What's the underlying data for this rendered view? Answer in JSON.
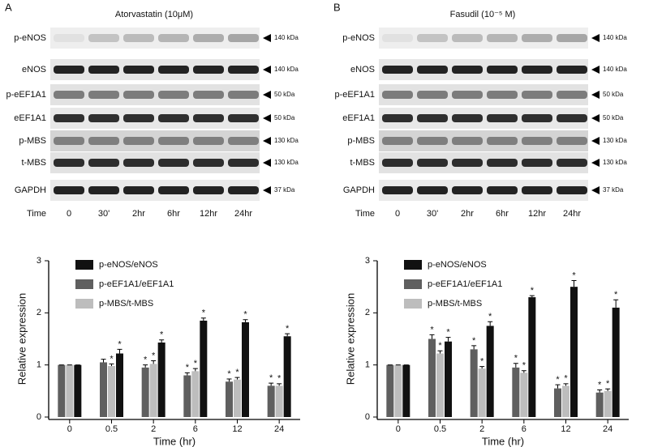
{
  "panels": [
    {
      "label": "A",
      "title": "Atorvastatin (10μM)",
      "rows": [
        {
          "name": "p-eNOS",
          "size": "140 kDa"
        },
        {
          "name": "eNOS",
          "size": "140 kDa"
        },
        {
          "name": "p-eEF1A1",
          "size": "50 kDa"
        },
        {
          "name": "eEF1A1",
          "size": "50 kDa"
        },
        {
          "name": "p-MBS",
          "size": "130 kDa"
        },
        {
          "name": "t-MBS",
          "size": "130 kDa"
        },
        {
          "name": "GAPDH",
          "size": "37 kDa"
        }
      ],
      "time_label": "Time",
      "lanes": [
        "0",
        "30'",
        "2hr",
        "6hr",
        "12hr",
        "24hr"
      ]
    },
    {
      "label": "B",
      "title": "Fasudil (10⁻⁵ M)",
      "rows": [
        {
          "name": "p-eNOS",
          "size": "140 kDa"
        },
        {
          "name": "eNOS",
          "size": "140 kDa"
        },
        {
          "name": "p-eEF1A1",
          "size": "50 kDa"
        },
        {
          "name": "eEF1A1",
          "size": "50 kDa"
        },
        {
          "name": "p-MBS",
          "size": "130 kDa"
        },
        {
          "name": "t-MBS",
          "size": "130 kDa"
        },
        {
          "name": "GAPDH",
          "size": "37 kDa"
        }
      ],
      "time_label": "Time",
      "lanes": [
        "0",
        "30'",
        "2hr",
        "6hr",
        "12hr",
        "24hr"
      ]
    }
  ],
  "chart_data": [
    {
      "type": "bar",
      "x_label": "Time (hr)",
      "y_label": "Relative expression",
      "categories": [
        "0",
        "0.5",
        "2",
        "6",
        "12",
        "24"
      ],
      "ylim": [
        0,
        3
      ],
      "yticks": [
        0,
        1,
        2,
        3
      ],
      "series": [
        {
          "name": "p-eNOS/eNOS",
          "color": "#111111",
          "values": [
            1,
            1.22,
            1.43,
            1.85,
            1.82,
            1.55
          ],
          "errors": [
            0,
            0.08,
            0.05,
            0.05,
            0.05,
            0.05
          ],
          "significance": [
            null,
            "*",
            "*",
            "*",
            "*",
            "*"
          ]
        },
        {
          "name": "p-eEF1A1/eEF1A1",
          "color": "#5f5f5f",
          "values": [
            1,
            1.05,
            0.95,
            0.8,
            0.68,
            0.6
          ],
          "errors": [
            0,
            0.06,
            0.05,
            0.05,
            0.05,
            0.05
          ],
          "significance": [
            null,
            null,
            "*",
            "*",
            "*",
            "*"
          ]
        },
        {
          "name": "p-MBS/t-MBS",
          "color": "#bdbdbd",
          "values": [
            1,
            0.98,
            1.02,
            0.88,
            0.72,
            0.6
          ],
          "errors": [
            0,
            0.04,
            0.06,
            0.05,
            0.04,
            0.04
          ],
          "significance": [
            null,
            "*",
            "*",
            "*",
            "*",
            "*"
          ]
        }
      ]
    },
    {
      "type": "bar",
      "x_label": "Time (hr)",
      "y_label": "Relative expression",
      "categories": [
        "0",
        "0.5",
        "2",
        "6",
        "12",
        "24"
      ],
      "ylim": [
        0,
        3
      ],
      "yticks": [
        0,
        1,
        2,
        3
      ],
      "series": [
        {
          "name": "p-eNOS/eNOS",
          "color": "#111111",
          "values": [
            1,
            1.45,
            1.75,
            2.3,
            2.5,
            2.1
          ],
          "errors": [
            0,
            0.08,
            0.08,
            0.03,
            0.12,
            0.15
          ],
          "significance": [
            null,
            "*",
            "*",
            "*",
            "*",
            "*"
          ]
        },
        {
          "name": "p-eEF1A1/eEF1A1",
          "color": "#5f5f5f",
          "values": [
            1,
            1.5,
            1.3,
            0.95,
            0.55,
            0.47
          ],
          "errors": [
            0,
            0.08,
            0.07,
            0.08,
            0.07,
            0.05
          ],
          "significance": [
            null,
            "*",
            "*",
            "*",
            "*",
            "*"
          ]
        },
        {
          "name": "p-MBS/t-MBS",
          "color": "#bdbdbd",
          "values": [
            1,
            1.22,
            0.93,
            0.85,
            0.6,
            0.5
          ],
          "errors": [
            0,
            0.05,
            0.04,
            0.04,
            0.04,
            0.04
          ],
          "significance": [
            null,
            "*",
            "*",
            "*",
            "*",
            "*"
          ]
        }
      ]
    }
  ]
}
